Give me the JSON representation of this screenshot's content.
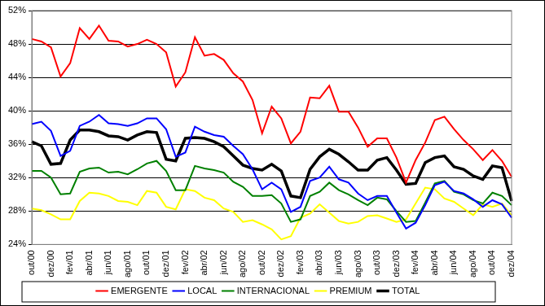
{
  "chart_data": {
    "type": "line",
    "categories": [
      "out/00",
      null,
      "dez/00",
      null,
      "fev/01",
      null,
      "abr/01",
      null,
      "jun/01",
      null,
      "ago/01",
      null,
      "out/01",
      null,
      "dez/01",
      null,
      "fev/02",
      null,
      "abr/02",
      null,
      "jun/02",
      null,
      "ago/02",
      null,
      "out/02",
      null,
      "dez/02",
      null,
      "fev/03",
      null,
      "abr/03",
      null,
      "jun/03",
      null,
      "ago/03",
      null,
      "out/03",
      null,
      "dez/03",
      null,
      "fev/04",
      null,
      "abr/04",
      null,
      "jun/04",
      null,
      "ago/04",
      null,
      "out/04",
      null,
      "dez/04"
    ],
    "series": [
      {
        "name": "EMERGENTE",
        "color": "#ff0000",
        "values": [
          48.6,
          48.3,
          47.6,
          44.1,
          45.7,
          49.9,
          48.6,
          50.2,
          48.4,
          48.3,
          47.7,
          48.0,
          48.5,
          48.0,
          47.0,
          42.9,
          44.6,
          48.8,
          46.6,
          46.8,
          46.1,
          44.5,
          43.5,
          41.3,
          37.3,
          40.5,
          39.1,
          36.1,
          37.5,
          41.6,
          41.5,
          43.0,
          39.9,
          39.9,
          38.0,
          35.7,
          36.7,
          36.7,
          34.4,
          31.4,
          34.1,
          36.2,
          38.9,
          39.3,
          37.8,
          36.5,
          35.4,
          34.1,
          35.3,
          34.0,
          32.1
        ]
      },
      {
        "name": "LOCAL",
        "color": "#0000ff",
        "values": [
          38.4,
          38.7,
          37.6,
          34.6,
          35.2,
          38.2,
          38.7,
          39.5,
          38.5,
          38.4,
          38.2,
          38.5,
          39.1,
          39.1,
          37.8,
          34.5,
          35.0,
          38.1,
          37.5,
          37.1,
          36.9,
          35.8,
          34.8,
          33.0,
          30.6,
          31.4,
          30.6,
          27.9,
          28.5,
          31.6,
          32.0,
          33.3,
          31.8,
          31.4,
          30.1,
          29.3,
          29.8,
          29.8,
          27.8,
          25.9,
          26.6,
          28.7,
          31.1,
          31.5,
          30.4,
          30.1,
          29.4,
          28.5,
          29.3,
          28.8,
          27.2
        ]
      },
      {
        "name": "INTERNACIONAL",
        "color": "#008000",
        "values": [
          32.8,
          32.8,
          32.0,
          30.0,
          30.1,
          32.7,
          33.1,
          33.2,
          32.6,
          32.7,
          32.4,
          33.0,
          33.7,
          34.0,
          32.8,
          30.5,
          30.5,
          33.4,
          33.1,
          32.9,
          32.6,
          31.5,
          30.9,
          29.8,
          29.8,
          29.9,
          28.9,
          26.7,
          27.0,
          29.8,
          30.3,
          31.4,
          30.5,
          30.0,
          29.3,
          28.7,
          29.6,
          29.4,
          28.0,
          26.7,
          26.8,
          29.0,
          31.3,
          31.6,
          30.3,
          30.0,
          29.3,
          28.9,
          30.2,
          29.8,
          28.7
        ]
      },
      {
        "name": "PREMIUM",
        "color": "#ffff00",
        "values": [
          28.3,
          28.1,
          27.6,
          27.0,
          27.0,
          29.2,
          30.2,
          30.1,
          29.8,
          29.2,
          29.1,
          28.7,
          30.4,
          30.2,
          28.5,
          28.2,
          30.6,
          30.4,
          29.6,
          29.3,
          28.3,
          27.9,
          26.7,
          26.9,
          26.4,
          25.8,
          24.6,
          25.0,
          27.2,
          27.7,
          28.8,
          27.8,
          26.8,
          26.5,
          26.7,
          27.4,
          27.5,
          27.1,
          26.7,
          27.0,
          28.9,
          30.8,
          30.6,
          29.5,
          29.1,
          28.3,
          27.5,
          28.8,
          28.5,
          28.9,
          27.5
        ]
      },
      {
        "name": "TOTAL",
        "color": "#000000",
        "values": [
          36.3,
          35.8,
          33.6,
          33.7,
          36.5,
          37.7,
          37.7,
          37.5,
          37.0,
          36.9,
          36.5,
          37.1,
          37.5,
          37.4,
          34.2,
          34.0,
          36.7,
          36.8,
          36.7,
          36.3,
          35.7,
          34.6,
          33.5,
          33.1,
          32.9,
          33.6,
          32.8,
          29.8,
          29.6,
          33.0,
          34.5,
          35.4,
          34.8,
          33.9,
          32.9,
          32.9,
          34.1,
          34.4,
          32.9,
          31.2,
          31.3,
          33.8,
          34.4,
          34.6,
          33.3,
          33.0,
          32.2,
          31.8,
          33.4,
          33.2,
          29.2
        ]
      }
    ],
    "ylim": [
      24,
      52
    ],
    "yticks": [
      {
        "value": 24,
        "label": "24%"
      },
      {
        "value": 28,
        "label": "28%"
      },
      {
        "value": 32,
        "label": "32%"
      },
      {
        "value": 36,
        "label": "36%"
      },
      {
        "value": 40,
        "label": "40%"
      },
      {
        "value": 44,
        "label": "44%"
      },
      {
        "value": 48,
        "label": "48%"
      },
      {
        "value": 52,
        "label": "52%"
      }
    ],
    "grid": true,
    "legend": "bottom"
  }
}
